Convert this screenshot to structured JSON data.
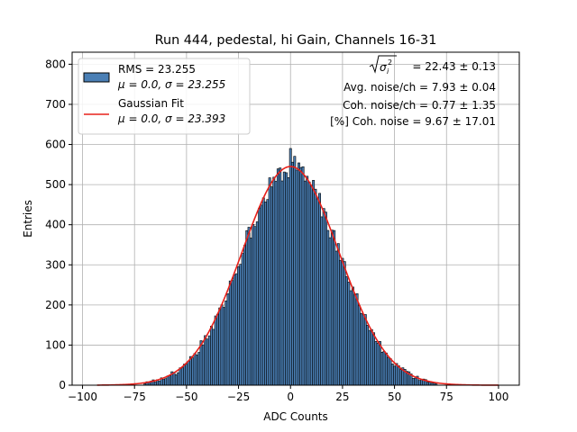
{
  "chart_data": {
    "type": "histogram",
    "title": "Run 444, pedestal, hi Gain, Channels 16-31",
    "xlabel": "ADC Counts",
    "ylabel": "Entries",
    "xlim": [
      -105,
      110
    ],
    "ylim": [
      0,
      830
    ],
    "grid": true,
    "xticks": [
      -100,
      -75,
      -50,
      -25,
      0,
      25,
      50,
      75,
      100
    ],
    "yticks": [
      0,
      100,
      200,
      300,
      400,
      500,
      600,
      700,
      800
    ],
    "bin_width": 1,
    "bin_range": [
      -70,
      70
    ],
    "histogram": {
      "name": "data",
      "fill_color": "#4a7fb5",
      "edge_color": "#000000",
      "center": 0.0,
      "sigma": 23.255,
      "peak": 545,
      "max_bin_value": 590,
      "min_count": 0.5
    },
    "fit_curve": {
      "name": "Gaussian Fit",
      "color": "#e8201a",
      "mu": 0.0,
      "sigma": 23.393,
      "amplitude": 545,
      "x_range": [
        -93,
        100
      ]
    },
    "legend": {
      "placement": "top-left",
      "entries": [
        {
          "series": "histogram",
          "line1": "RMS = 23.255",
          "line2": "μ = 0.0, σ = 23.255"
        },
        {
          "series": "fit",
          "line1": "Gaussian Fit",
          "line2": "μ = 0.0, σ = 23.393"
        }
      ]
    },
    "annotations": {
      "sigma_label": "= 22.43 ± 0.13",
      "avg_noise": "Avg. noise/ch = 7.93 ± 0.04",
      "coh_noise": "Coh. noise/ch = 0.77 ± 1.35",
      "coh_percent": "[%] Coh. noise = 9.67 ± 17.01"
    }
  }
}
